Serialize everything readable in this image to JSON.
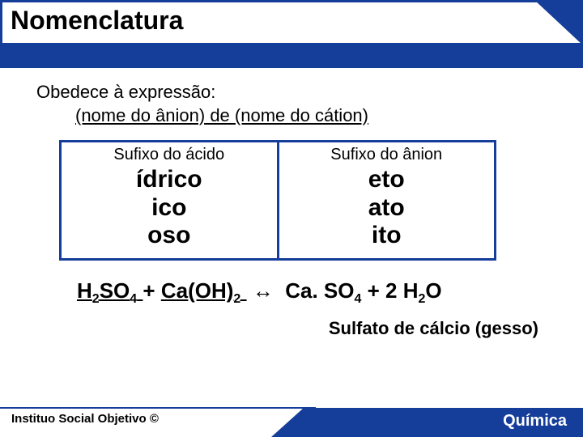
{
  "title": "Nomenclatura",
  "expression": {
    "line1": "Obedece à expressão:",
    "line2": "(nome do ânion) de (nome do cátion)"
  },
  "table": {
    "type": "table",
    "columns": [
      "Sufixo do ácido",
      "Sufixo do ânion"
    ],
    "rows": [
      [
        "ídrico",
        "eto"
      ],
      [
        "ico",
        "ato"
      ],
      [
        "oso",
        "ito"
      ]
    ],
    "border_color": "#153d9a",
    "header_fontsize": 20,
    "cell_fontsize": 30,
    "cell_fontweight": "bold"
  },
  "equation": {
    "reactants": "H₂SO₄ + Ca(OH)₂",
    "arrow": "↔",
    "products": "Ca.SO₄ + 2 H₂O",
    "h2so4": {
      "H": "H",
      "sub1": "2",
      "SO": "SO",
      "sub2": "4"
    },
    "caoh2": {
      "Ca": "Ca",
      "OH": "(OH)",
      "sub": "2"
    },
    "caso4": {
      "Ca": "Ca. SO",
      "sub": "4"
    },
    "h2o": {
      "coef": "2 H",
      "sub": "2",
      "O": "O"
    },
    "plus": " + "
  },
  "result": "Sulfato de cálcio (gesso)",
  "footer": {
    "left": "Instituo Social Objetivo ©",
    "right": "Química"
  },
  "colors": {
    "brand_blue": "#153d9a",
    "background": "#ffffff",
    "text": "#000000"
  }
}
